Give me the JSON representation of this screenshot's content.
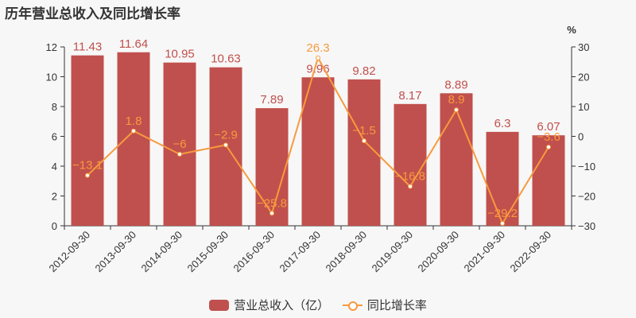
{
  "title": "历年营业总收入及同比增长率",
  "right_axis_unit": "%",
  "legend": {
    "bar_label": "营业总收入（亿）",
    "line_label": "同比增长率"
  },
  "colors": {
    "bar": "#c0504d",
    "line": "#f79a3e",
    "background": "#f7f7f7"
  },
  "chart_data": {
    "type": "bar+line",
    "title": "历年营业总收入及同比增长率",
    "categories": [
      "2012-09-30",
      "2013-09-30",
      "2014-09-30",
      "2015-09-30",
      "2016-09-30",
      "2017-09-30",
      "2018-09-30",
      "2019-09-30",
      "2020-09-30",
      "2021-09-30",
      "2022-09-30"
    ],
    "series": [
      {
        "name": "营业总收入（亿）",
        "type": "bar",
        "axis": "left",
        "values": [
          11.43,
          11.64,
          10.95,
          10.63,
          7.89,
          9.96,
          9.82,
          8.17,
          8.89,
          6.3,
          6.07
        ]
      },
      {
        "name": "同比增长率",
        "type": "line",
        "axis": "right",
        "values": [
          -13.1,
          1.8,
          -6,
          -2.9,
          -25.8,
          26.3,
          -1.5,
          -16.8,
          8.9,
          -29.2,
          -3.6
        ]
      }
    ],
    "left_axis": {
      "ylim": [
        0,
        12
      ],
      "ticks": [
        0,
        2,
        4,
        6,
        8,
        10,
        12
      ]
    },
    "right_axis": {
      "label": "%",
      "ylim": [
        -30,
        30
      ],
      "ticks": [
        -30,
        -20,
        -10,
        0,
        10,
        20,
        30
      ]
    },
    "grid": false,
    "legend_position": "bottom"
  }
}
